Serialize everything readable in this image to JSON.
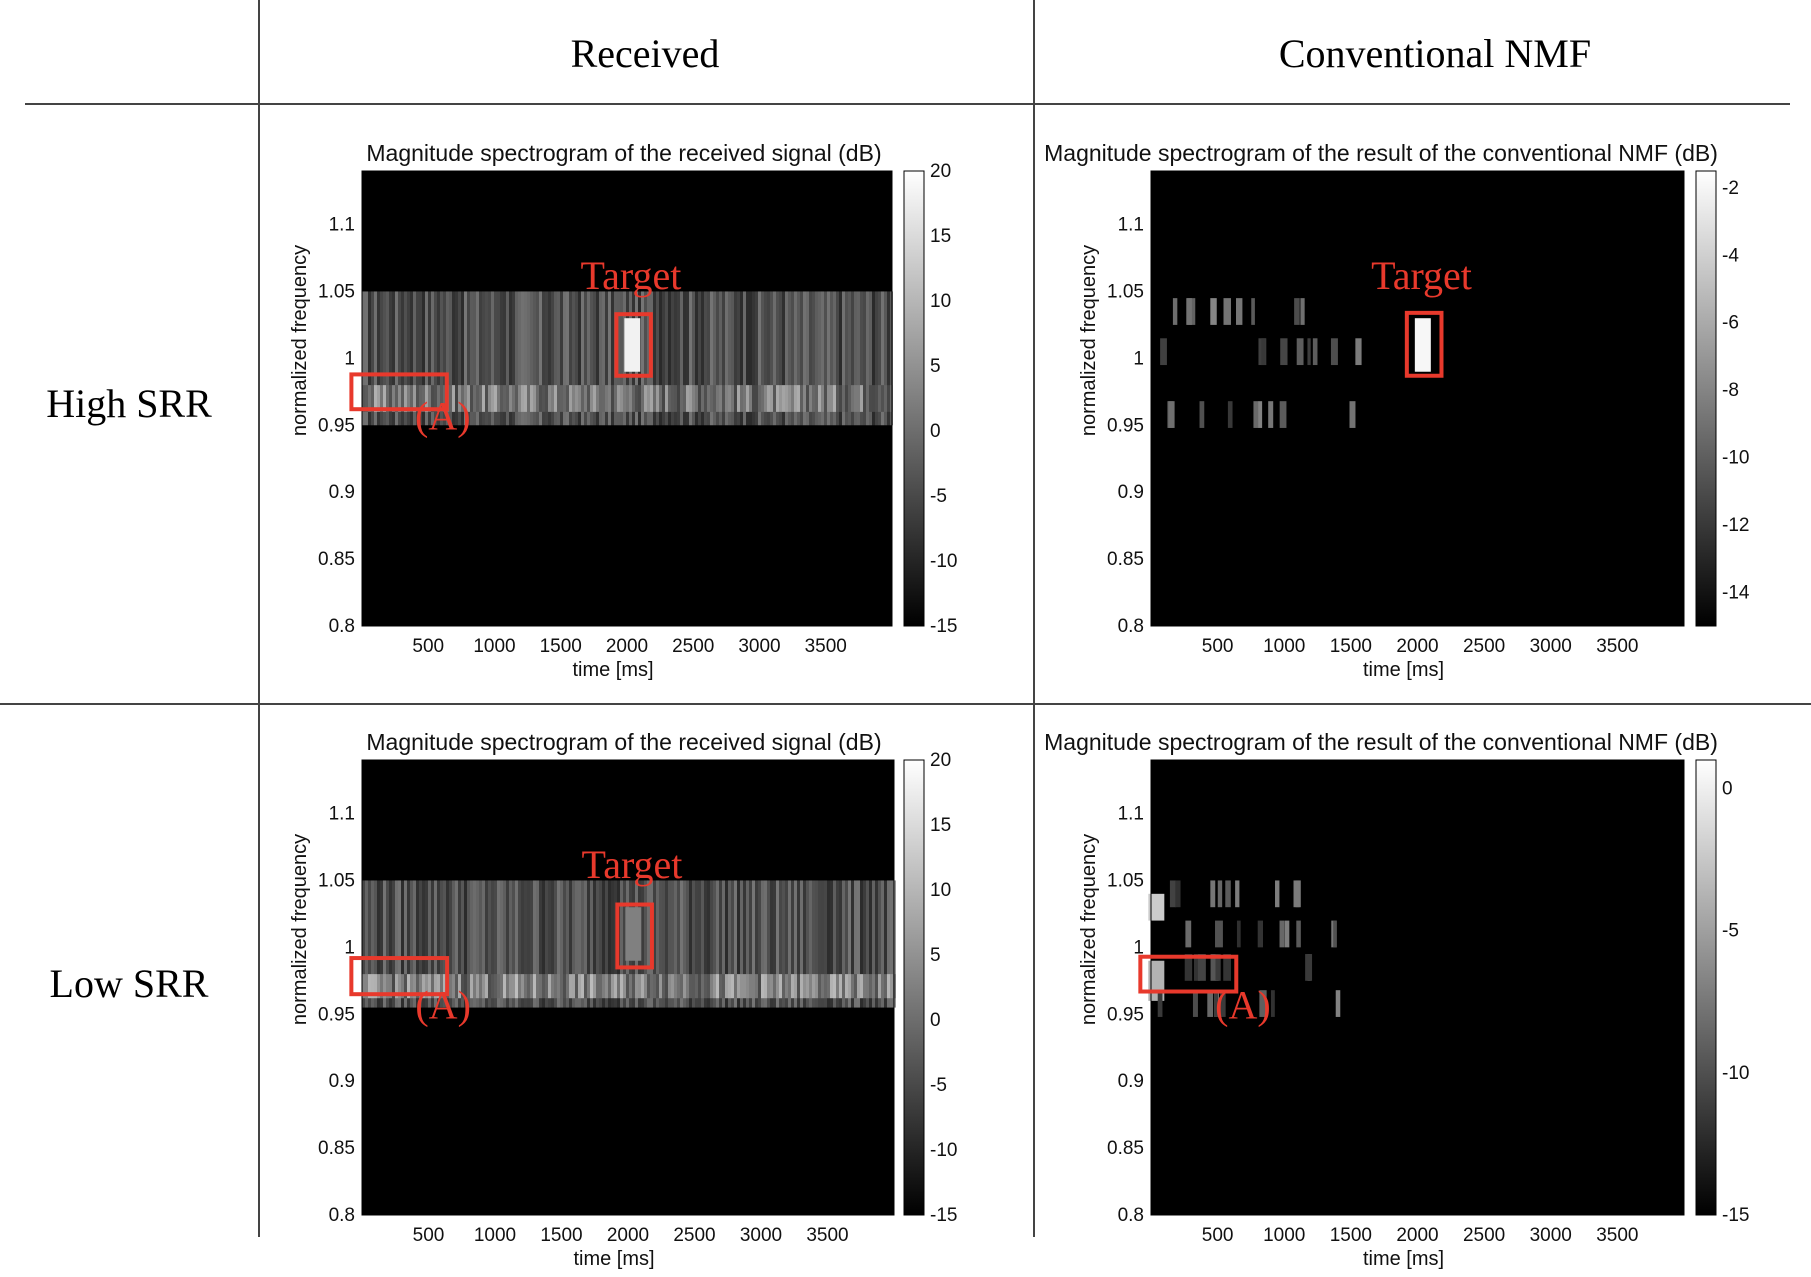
{
  "table": {
    "col_headers": [
      "Received",
      "Conventional NMF"
    ],
    "row_headers": [
      "High SRR",
      "Low SRR"
    ]
  },
  "chart_data": [
    {
      "type": "heatmap",
      "panel": "high-received",
      "title": "Magnitude spectrogram of the received signal (dB)",
      "xlabel": "time [ms]",
      "ylabel": "normalized frequency",
      "xlim": [
        0,
        4000
      ],
      "ylim": [
        0.8,
        1.14
      ],
      "xticks": [
        "500",
        "1000",
        "1500",
        "2000",
        "2500",
        "3000",
        "3500"
      ],
      "yticks": [
        "0.8",
        "0.85",
        "0.9",
        "0.95",
        "1",
        "1.05",
        "1.1"
      ],
      "colorbar": {
        "min": -15,
        "max": 20,
        "ticks": [
          "20",
          "15",
          "10",
          "5",
          "0",
          "-5",
          "-10",
          "-15"
        ]
      },
      "bands": [
        {
          "f_low": 0.95,
          "f_high": 1.05,
          "level": 0.55
        },
        {
          "f_low": 0.96,
          "f_high": 0.98,
          "level": 0.75
        }
      ],
      "bright_spots": [
        {
          "t": 2040,
          "f_low": 0.99,
          "f_high": 1.03,
          "level": 0.95
        }
      ],
      "annotations": [
        {
          "label": "Target",
          "box": {
            "t0": 1920,
            "t1": 2180,
            "f0": 0.987,
            "f1": 1.033
          },
          "label_at": {
            "t": 2030,
            "f": 1.052
          }
        },
        {
          "label": "(A)",
          "box": {
            "t0": -80,
            "t1": 640,
            "f0": 0.962,
            "f1": 0.988
          },
          "label_at": {
            "t": 610,
            "f": 0.947
          }
        }
      ]
    },
    {
      "type": "heatmap",
      "panel": "high-nmf",
      "title": "Magnitude spectrogram of the result of the conventional NMF (dB)",
      "xlabel": "time [ms]",
      "ylabel": "normalized frequency",
      "xlim": [
        0,
        4000
      ],
      "ylim": [
        0.8,
        1.14
      ],
      "xticks": [
        "500",
        "1000",
        "1500",
        "2000",
        "2500",
        "3000",
        "3500"
      ],
      "yticks": [
        "0.8",
        "0.85",
        "0.9",
        "0.95",
        "1",
        "1.05",
        "1.1"
      ],
      "colorbar": {
        "min": -15,
        "max": -1.5,
        "ticks": [
          "-2",
          "-4",
          "-6",
          "-8",
          "-10",
          "-12",
          "-14"
        ]
      },
      "bands": [],
      "bright_spots": [
        {
          "t": 2040,
          "f_low": 0.99,
          "f_high": 1.03,
          "level": 0.97
        }
      ],
      "annotations": [
        {
          "label": "Target",
          "box": {
            "t0": 1920,
            "t1": 2180,
            "f0": 0.987,
            "f1": 1.034
          },
          "label_at": {
            "t": 2030,
            "f": 1.052
          }
        }
      ]
    },
    {
      "type": "heatmap",
      "panel": "low-received",
      "title": "Magnitude spectrogram of the received signal (dB)",
      "xlabel": "time [ms]",
      "ylabel": "normalized frequency",
      "xlim": [
        0,
        4000
      ],
      "ylim": [
        0.8,
        1.14
      ],
      "xticks": [
        "500",
        "1000",
        "1500",
        "2000",
        "2500",
        "3000",
        "3500"
      ],
      "yticks": [
        "0.8",
        "0.85",
        "0.9",
        "0.95",
        "1",
        "1.05",
        "1.1"
      ],
      "colorbar": {
        "min": -15,
        "max": 20,
        "ticks": [
          "20",
          "15",
          "10",
          "5",
          "0",
          "-5",
          "-10",
          "-15"
        ]
      },
      "bands": [
        {
          "f_low": 0.955,
          "f_high": 1.05,
          "level": 0.55
        },
        {
          "f_low": 0.962,
          "f_high": 0.98,
          "level": 0.8
        }
      ],
      "bright_spots": [
        {
          "t": 2040,
          "f_low": 0.99,
          "f_high": 1.03,
          "level": 0.5
        }
      ],
      "annotations": [
        {
          "label": "Target",
          "box": {
            "t0": 1920,
            "t1": 2180,
            "f0": 0.985,
            "f1": 1.032
          },
          "label_at": {
            "t": 2030,
            "f": 1.052
          }
        },
        {
          "label": "(A)",
          "box": {
            "t0": -80,
            "t1": 640,
            "f0": 0.965,
            "f1": 0.992
          },
          "label_at": {
            "t": 610,
            "f": 0.947
          }
        }
      ]
    },
    {
      "type": "heatmap",
      "panel": "low-nmf",
      "title": "Magnitude spectrogram of the result of the conventional NMF (dB)",
      "xlabel": "time [ms]",
      "ylabel": "normalized frequency",
      "xlim": [
        0,
        4000
      ],
      "ylim": [
        0.8,
        1.14
      ],
      "xticks": [
        "500",
        "1000",
        "1500",
        "2000",
        "2500",
        "3000",
        "3500"
      ],
      "yticks": [
        "0.8",
        "0.85",
        "0.9",
        "0.95",
        "1",
        "1.05",
        "1.1"
      ],
      "colorbar": {
        "min": -15,
        "max": 1,
        "ticks": [
          "0",
          "-5",
          "-10",
          "-15"
        ]
      },
      "bands": [],
      "bright_spots": [
        {
          "t": 40,
          "f_low": 1.02,
          "f_high": 1.04,
          "level": 0.8
        },
        {
          "t": 40,
          "f_low": 0.96,
          "f_high": 0.99,
          "level": 0.7
        }
      ],
      "annotations": [
        {
          "label": "(A)",
          "box": {
            "t0": -80,
            "t1": 640,
            "f0": 0.967,
            "f1": 0.993
          },
          "label_at": {
            "t": 690,
            "f": 0.947
          }
        }
      ]
    }
  ]
}
